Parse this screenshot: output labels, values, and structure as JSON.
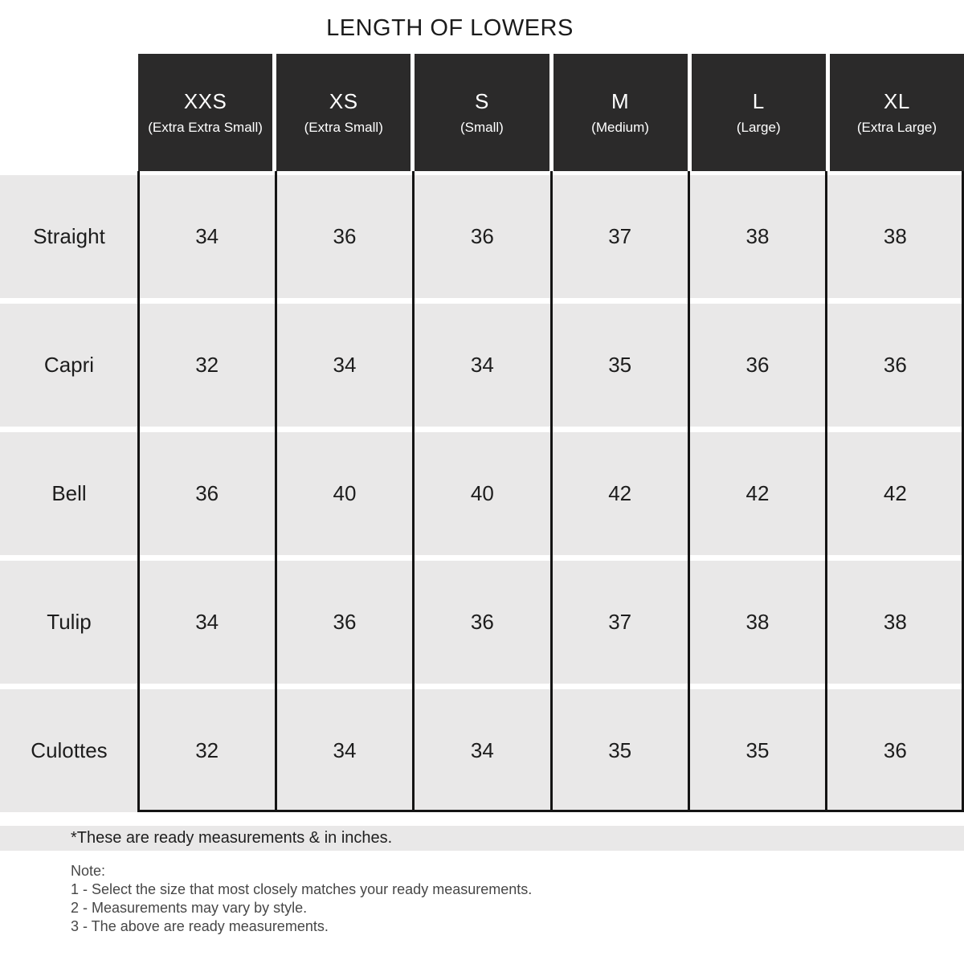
{
  "title": "LENGTH OF LOWERS",
  "table": {
    "columns": [
      {
        "size": "XXS",
        "full": "(Extra Extra Small)"
      },
      {
        "size": "XS",
        "full": "(Extra Small)"
      },
      {
        "size": "S",
        "full": "(Small)"
      },
      {
        "size": "M",
        "full": "(Medium)"
      },
      {
        "size": "L",
        "full": "(Large)"
      },
      {
        "size": "XL",
        "full": "(Extra Large)"
      }
    ],
    "rows": [
      {
        "label": "Straight",
        "values": [
          "34",
          "36",
          "36",
          "37",
          "38",
          "38"
        ]
      },
      {
        "label": "Capri",
        "values": [
          "32",
          "34",
          "34",
          "35",
          "36",
          "36"
        ]
      },
      {
        "label": "Bell",
        "values": [
          "36",
          "40",
          "40",
          "42",
          "42",
          "42"
        ]
      },
      {
        "label": "Tulip",
        "values": [
          "34",
          "36",
          "36",
          "37",
          "38",
          "38"
        ]
      },
      {
        "label": "Culottes",
        "values": [
          "32",
          "34",
          "34",
          "35",
          "35",
          "36"
        ]
      }
    ]
  },
  "footnote": "*These are ready measurements & in inches.",
  "notes": {
    "heading": "Note:",
    "items": [
      "1 - Select the size that most closely matches your ready measurements.",
      "2 - Measurements may vary by style.",
      "3 - The above are ready measurements."
    ]
  },
  "colors": {
    "header_bg": "#2b2a2a",
    "header_text": "#ffffff",
    "row_bg": "#e9e8e8",
    "cell_text": "#1d1d1d",
    "rule": "#141414",
    "note_text": "#474747"
  }
}
